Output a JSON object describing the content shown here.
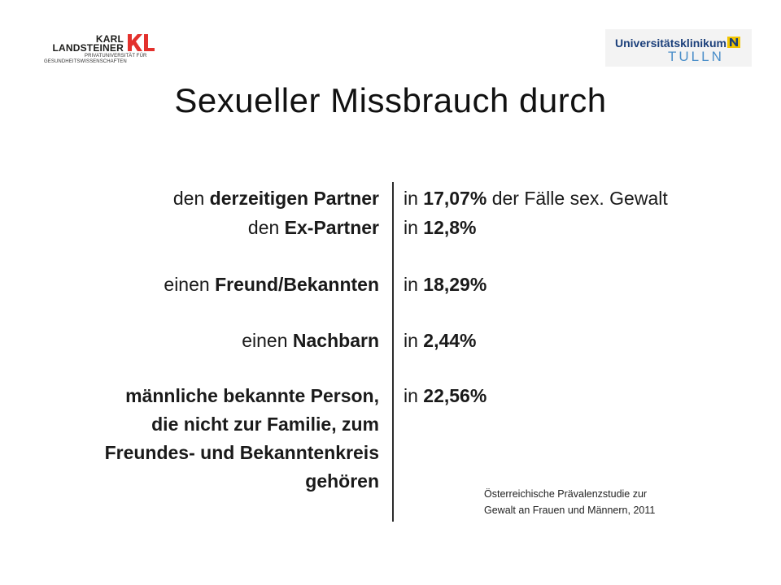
{
  "logos": {
    "left": {
      "line1": "KARL",
      "line2": "LANDSTEINER",
      "mark": "KL",
      "sub1": "PRIVATUNIVERSITÄT FÜR",
      "sub2": "GESUNDHEITSWISSENSCHAFTEN",
      "mark_color": "#e3312d"
    },
    "right": {
      "line1": "Universitätsklinikum",
      "line2": "TULLN",
      "badge": "N",
      "badge_color": "#f2c500"
    }
  },
  "title": "Sexueller Missbrauch durch",
  "rows": [
    {
      "left": [
        {
          "pre": "den ",
          "bold": "derzeitigen Partner"
        }
      ],
      "right": {
        "pre": "in ",
        "bold": "17,07%",
        "post": " der Fälle sex. Gewalt"
      }
    },
    {
      "left": [
        {
          "pre": "den ",
          "bold": "Ex-Partner"
        }
      ],
      "right": {
        "pre": "in ",
        "bold": "12,8%",
        "post": ""
      }
    },
    {
      "left": [
        {
          "pre": "einen ",
          "bold": "Freund/Bekannten"
        }
      ],
      "right": {
        "pre": "in ",
        "bold": "18,29%",
        "post": ""
      }
    },
    {
      "left": [
        {
          "pre": "einen ",
          "bold": "Nachbarn"
        }
      ],
      "right": {
        "pre": "in ",
        "bold": "2,44%",
        "post": ""
      }
    },
    {
      "left_lines": [
        "männliche bekannte Person,",
        "die nicht zur Familie, zum",
        "Freundes- und Bekanntenkreis",
        "gehören"
      ],
      "right": {
        "pre": "in ",
        "bold": "22,56%",
        "post": ""
      }
    }
  ],
  "source": {
    "line1": "Österreichische Prävalenzstudie zur",
    "line2": "Gewalt an Frauen und Männern, 2011"
  }
}
